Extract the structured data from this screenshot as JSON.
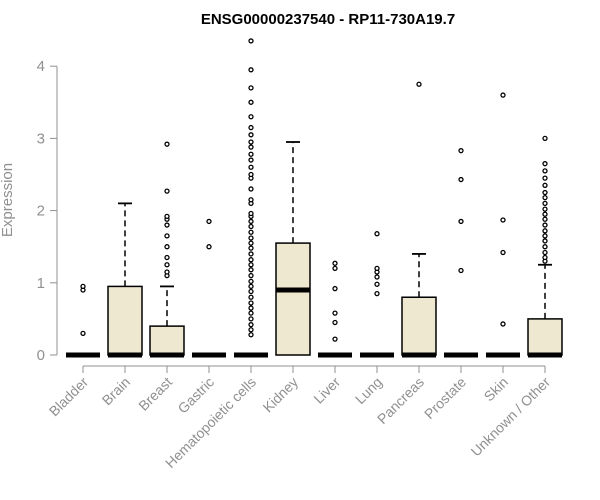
{
  "chart_data": {
    "type": "boxplot",
    "title": "ENSG00000237540 - RP11-730A19.7",
    "ylabel": "Expression",
    "ylim": [
      0,
      4.3
    ],
    "yticks": [
      0,
      1,
      2,
      3,
      4
    ],
    "grid": false,
    "categories": [
      "Bladder",
      "Brain",
      "Breast",
      "Gastric",
      "Hematopoietic cells",
      "Kidney",
      "Liver",
      "Lung",
      "Pancreas",
      "Prostate",
      "Skin",
      "Unknown / Other"
    ],
    "boxes": [
      {
        "q1": 0,
        "median": 0,
        "q3": 0,
        "whisker_low": 0,
        "whisker_high": 0,
        "outliers": [
          0.3,
          0.9,
          0.95
        ]
      },
      {
        "q1": 0,
        "median": 0,
        "q3": 0.95,
        "whisker_low": 0,
        "whisker_high": 2.1,
        "outliers": []
      },
      {
        "q1": 0,
        "median": 0,
        "q3": 0.4,
        "whisker_low": 0,
        "whisker_high": 0.95,
        "outliers": [
          1.1,
          1.15,
          1.25,
          1.35,
          1.5,
          1.65,
          1.8,
          1.88,
          1.92,
          2.27,
          2.92
        ]
      },
      {
        "q1": 0,
        "median": 0,
        "q3": 0,
        "whisker_low": 0,
        "whisker_high": 0,
        "outliers": [
          1.5,
          1.85
        ]
      },
      {
        "q1": 0,
        "median": 0,
        "q3": 0,
        "whisker_low": 0,
        "whisker_high": 0,
        "outliers": [
          0.28,
          0.35,
          0.42,
          0.5,
          0.58,
          0.65,
          0.72,
          0.8,
          0.88,
          0.95,
          1.02,
          1.1,
          1.18,
          1.25,
          1.32,
          1.4,
          1.48,
          1.55,
          1.62,
          1.7,
          1.78,
          1.85,
          1.92,
          1.96,
          2.1,
          2.15,
          2.3,
          2.45,
          2.5,
          2.6,
          2.7,
          2.78,
          2.88,
          2.95,
          3.05,
          3.15,
          3.3,
          3.5,
          3.7,
          3.95,
          4.35
        ]
      },
      {
        "q1": 0,
        "median": 0.9,
        "q3": 1.55,
        "whisker_low": 0,
        "whisker_high": 2.95,
        "outliers": []
      },
      {
        "q1": 0,
        "median": 0,
        "q3": 0,
        "whisker_low": 0,
        "whisker_high": 0,
        "outliers": [
          0.22,
          0.45,
          0.58,
          0.92,
          1.2,
          1.27
        ]
      },
      {
        "q1": 0,
        "median": 0,
        "q3": 0,
        "whisker_low": 0,
        "whisker_high": 0,
        "outliers": [
          0.85,
          0.98,
          1.08,
          1.15,
          1.2,
          1.68
        ]
      },
      {
        "q1": 0,
        "median": 0,
        "q3": 0.8,
        "whisker_low": 0,
        "whisker_high": 1.4,
        "outliers": [
          3.75
        ]
      },
      {
        "q1": 0,
        "median": 0,
        "q3": 0,
        "whisker_low": 0,
        "whisker_high": 0,
        "outliers": [
          1.17,
          1.85,
          2.43,
          2.83
        ]
      },
      {
        "q1": 0,
        "median": 0,
        "q3": 0,
        "whisker_low": 0,
        "whisker_high": 0,
        "outliers": [
          0.43,
          1.42,
          1.87,
          3.6
        ]
      },
      {
        "q1": 0,
        "median": 0,
        "q3": 0.5,
        "whisker_low": 0,
        "whisker_high": 1.25,
        "outliers": [
          1.3,
          1.35,
          1.42,
          1.5,
          1.58,
          1.65,
          1.72,
          1.8,
          1.88,
          1.95,
          2.02,
          2.1,
          2.18,
          2.25,
          2.35,
          2.45,
          2.55,
          2.65,
          3.0
        ]
      }
    ],
    "colors": {
      "box_fill": "#efe8d0",
      "stroke": "#000000",
      "axis": "#909090"
    }
  }
}
